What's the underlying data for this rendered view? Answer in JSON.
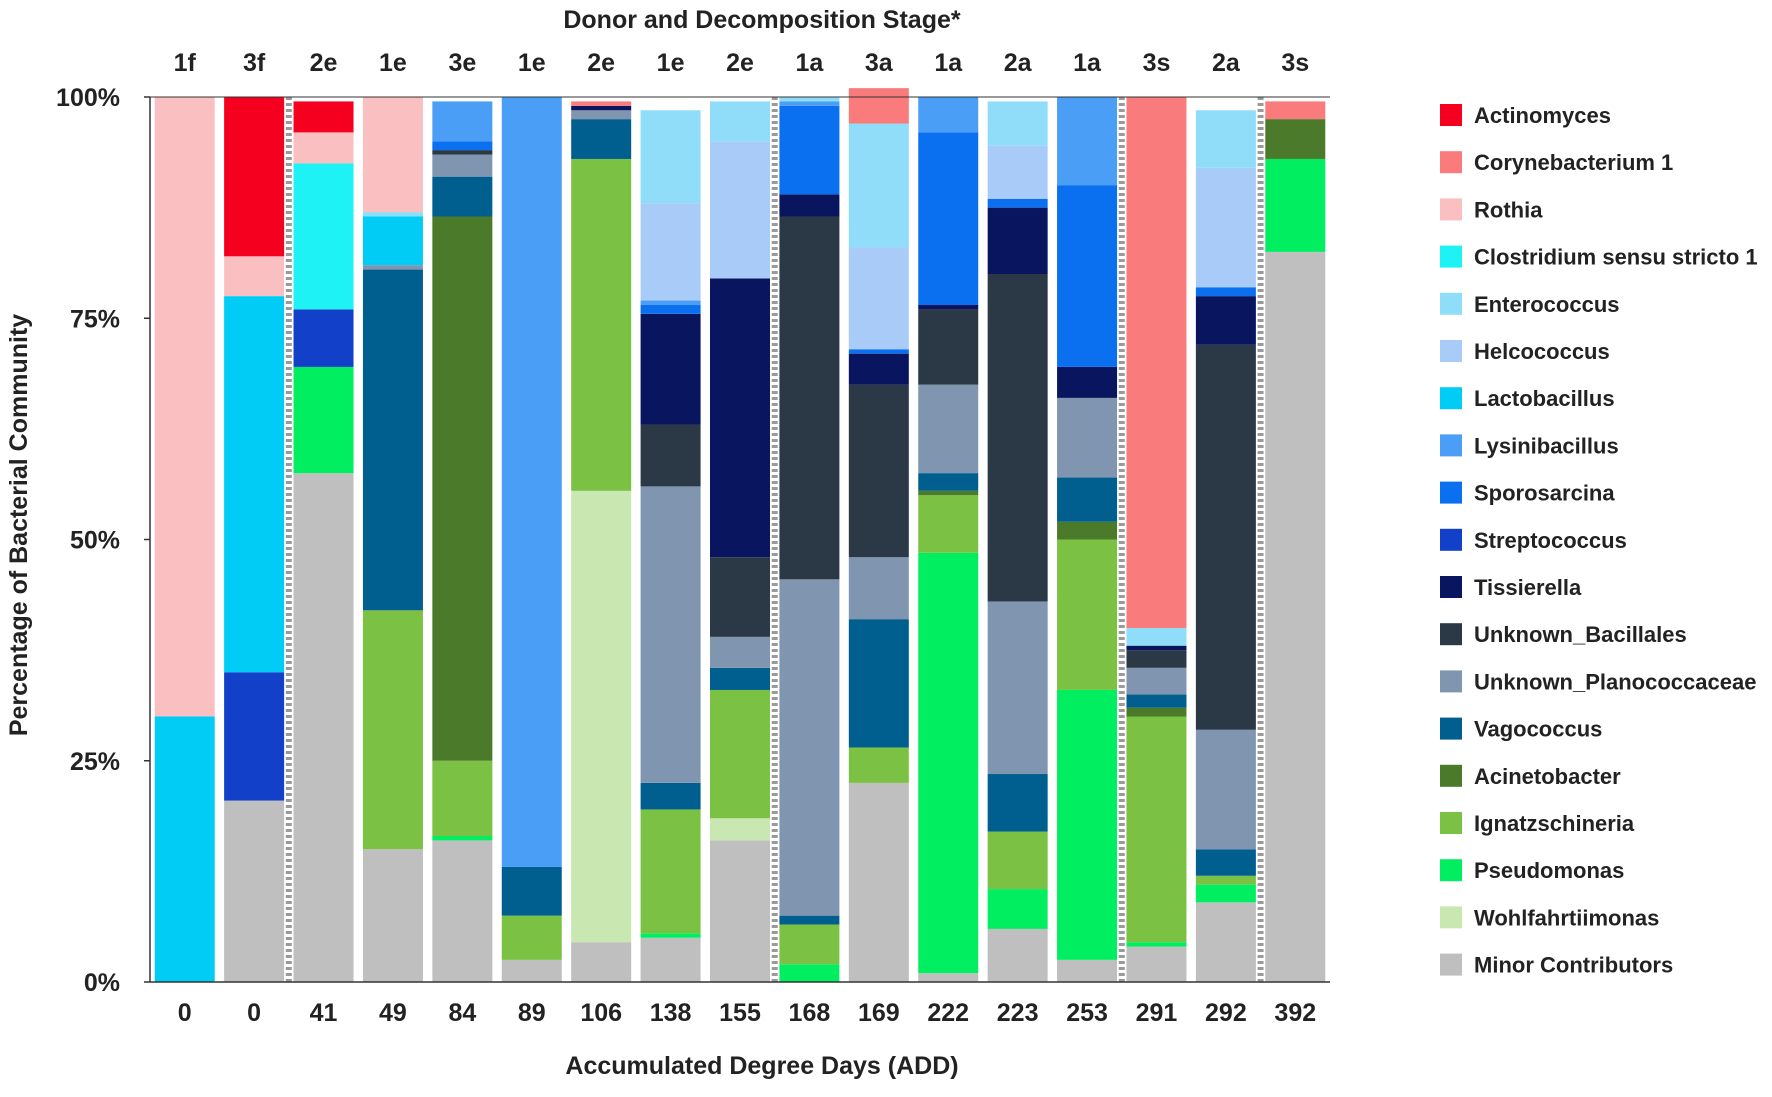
{
  "chart_data": {
    "type": "bar",
    "stacked": true,
    "title": "Donor and Decomposition Stage*",
    "xlabel": "Accumulated Degree Days (ADD)",
    "ylabel": "Percentage of Bacterial Community",
    "ylim": [
      0,
      100
    ],
    "y_ticks": [
      "0%",
      "25%",
      "50%",
      "75%",
      "100%"
    ],
    "y_tick_values": [
      0,
      25,
      50,
      75,
      100
    ],
    "categories": [
      "0",
      "0",
      "41",
      "49",
      "84",
      "89",
      "106",
      "138",
      "155",
      "168",
      "169",
      "222",
      "223",
      "253",
      "291",
      "292",
      "392"
    ],
    "stage_labels": [
      "1f",
      "3f",
      "2e",
      "1e",
      "3e",
      "1e",
      "2e",
      "1e",
      "2e",
      "1a",
      "3a",
      "1a",
      "2a",
      "1a",
      "3s",
      "2a",
      "3s"
    ],
    "group_separators_after_index": [
      1,
      8,
      13,
      15
    ],
    "legend_position": "right",
    "series": [
      {
        "name": "Minor Contributors",
        "color": "#BFBFBF",
        "values": [
          0,
          20.5,
          57.5,
          15,
          16,
          2.5,
          4.5,
          5,
          16,
          0,
          22.5,
          1,
          6,
          2.5,
          4,
          9,
          82.5
        ]
      },
      {
        "name": "Wohlfahrtiimonas",
        "color": "#C9E7B0",
        "values": [
          0,
          0,
          0,
          0,
          0,
          0,
          51,
          0,
          2.5,
          0,
          0,
          0,
          0,
          0,
          0,
          0,
          0
        ]
      },
      {
        "name": "Pseudomonas",
        "color": "#00EE60",
        "values": [
          0,
          0,
          12,
          0,
          0.5,
          0,
          0,
          0.5,
          0,
          2,
          0,
          47.5,
          4.5,
          30.5,
          0.5,
          2,
          10.5
        ]
      },
      {
        "name": "Ignatzschineria",
        "color": "#7BC143",
        "values": [
          0,
          0,
          0,
          27,
          8.5,
          5,
          37.5,
          14,
          14.5,
          4.5,
          4,
          6.5,
          6.5,
          17,
          25.5,
          1,
          0
        ]
      },
      {
        "name": "Acinetobacter",
        "color": "#4A7A2A",
        "values": [
          0,
          0,
          0,
          0,
          61.5,
          0,
          0,
          0,
          0,
          0,
          0,
          0.5,
          0,
          2,
          1,
          0,
          4.5
        ]
      },
      {
        "name": "Vagococcus",
        "color": "#005F8E",
        "values": [
          0,
          0,
          0,
          38.5,
          4.5,
          5.5,
          4.5,
          3,
          2.5,
          1,
          14.5,
          2,
          6.5,
          5,
          1.5,
          3,
          0
        ]
      },
      {
        "name": "Unknown_Planococcaceae",
        "color": "#8096B0",
        "values": [
          0,
          0,
          0,
          0.5,
          2.5,
          0,
          1,
          33.5,
          3.5,
          38,
          7,
          10,
          19.5,
          9,
          3,
          13.5,
          0
        ]
      },
      {
        "name": "Unknown_Bacillales",
        "color": "#2B3947",
        "values": [
          0,
          0,
          0,
          0,
          0.5,
          0,
          0,
          7,
          9,
          41,
          19.5,
          8.5,
          37,
          0,
          2,
          43.5,
          0
        ]
      },
      {
        "name": "Tissierella",
        "color": "#0A1560",
        "values": [
          0,
          0,
          0,
          0,
          0,
          0,
          0.5,
          12.5,
          31.5,
          2.5,
          3.5,
          0.5,
          7.5,
          3.5,
          0.5,
          5.5,
          0
        ]
      },
      {
        "name": "Streptococcus",
        "color": "#1240C8",
        "values": [
          0,
          14.5,
          6.5,
          0,
          0,
          0,
          0,
          0,
          0,
          0,
          0,
          0,
          0,
          0,
          0,
          0,
          0
        ]
      },
      {
        "name": "Sporosarcina",
        "color": "#0A70F0",
        "values": [
          0,
          0,
          0,
          0,
          1,
          0,
          0,
          1,
          0,
          10,
          0.5,
          19.5,
          1,
          20.5,
          0,
          1,
          0
        ]
      },
      {
        "name": "Lysinibacillus",
        "color": "#4A9EF5",
        "values": [
          0,
          0,
          0,
          0,
          4.5,
          87,
          0,
          0.5,
          0,
          0.5,
          0,
          4,
          0,
          10,
          0,
          0,
          0
        ]
      },
      {
        "name": "Lactobacillus",
        "color": "#00CCF5",
        "values": [
          30,
          42.5,
          0,
          5.5,
          0,
          0,
          0,
          0,
          0,
          0,
          0,
          0,
          0,
          0,
          0,
          0,
          0
        ]
      },
      {
        "name": "Helcococcus",
        "color": "#A9CBF8",
        "values": [
          0,
          0,
          0,
          0,
          0,
          0,
          0,
          11,
          15.5,
          0,
          11.5,
          0,
          6,
          0,
          0,
          13.5,
          0
        ]
      },
      {
        "name": "Enterococcus",
        "color": "#8FDDF8",
        "values": [
          0,
          0,
          0,
          0.5,
          0,
          0,
          0,
          10.5,
          4.5,
          0.5,
          14,
          0,
          5,
          0,
          2,
          6.5,
          0
        ]
      },
      {
        "name": "Clostridium sensu stricto 1",
        "color": "#1EF2F5",
        "values": [
          0,
          0,
          16.5,
          0,
          0,
          0,
          0,
          0,
          0,
          0,
          0,
          0,
          0,
          0,
          0,
          0,
          0
        ]
      },
      {
        "name": "Rothia",
        "color": "#F9BFC1",
        "values": [
          70,
          4.5,
          3.5,
          13,
          0,
          0,
          0,
          0,
          0,
          0,
          0,
          0,
          0,
          0,
          0,
          0,
          0
        ]
      },
      {
        "name": "Corynebacterium 1",
        "color": "#FA7B7B",
        "values": [
          0,
          0,
          0,
          0,
          0,
          0,
          0.5,
          0,
          0,
          0,
          4,
          0,
          0,
          0,
          60,
          0,
          2
        ]
      },
      {
        "name": "Actinomyces",
        "color": "#F5001F",
        "values": [
          0,
          18,
          3.5,
          0,
          0,
          0,
          0,
          0,
          0,
          0,
          0,
          0,
          0,
          0,
          0,
          0,
          0
        ]
      }
    ],
    "legend_order": [
      "Actinomyces",
      "Corynebacterium 1",
      "Rothia",
      "Clostridium sensu stricto 1",
      "Enterococcus",
      "Helcococcus",
      "Lactobacillus",
      "Lysinibacillus",
      "Sporosarcina",
      "Streptococcus",
      "Tissierella",
      "Unknown_Bacillales",
      "Unknown_Planococcaceae",
      "Vagococcus",
      "Acinetobacter",
      "Ignatzschineria",
      "Pseudomonas",
      "Wohlfahrtiimonas",
      "Minor Contributors"
    ]
  }
}
